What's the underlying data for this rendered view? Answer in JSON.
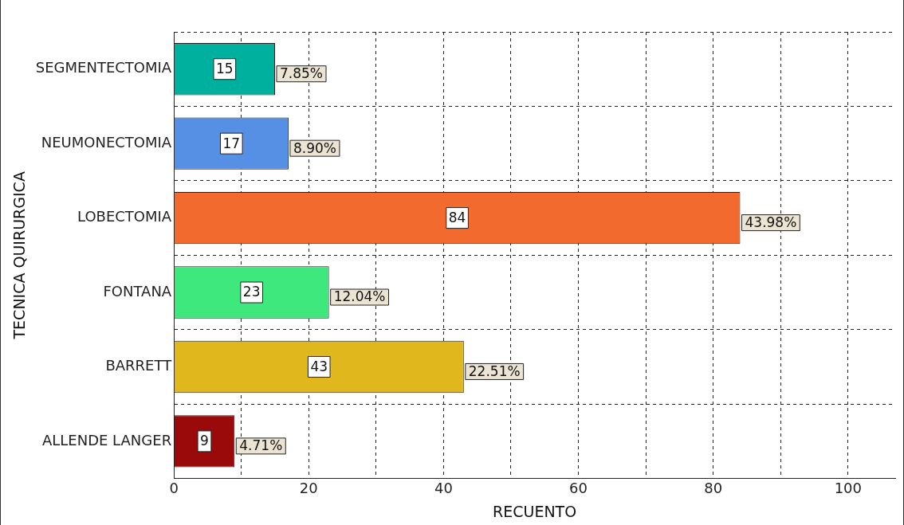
{
  "chart_data": {
    "type": "bar",
    "orientation": "horizontal",
    "xlabel": "RECUENTO",
    "ylabel": "TECNICA QUIRURGICA",
    "categories": [
      "SEGMENTECTOMIA",
      "NEUMONECTOMIA",
      "LOBECTOMIA",
      "FONTANA",
      "BARRETT",
      "ALLENDE LANGER"
    ],
    "values": [
      15,
      17,
      84,
      23,
      43,
      9
    ],
    "colors": [
      "#00b09e",
      "#5690e4",
      "#f26a2e",
      "#3ee87c",
      "#e0b81e",
      "#9b0a0a"
    ],
    "value_labels": [
      "15",
      "17",
      "84",
      "23",
      "43",
      "9"
    ],
    "annotations": [
      {
        "text": "7.85%",
        "x": 15,
        "y": "SEGMENTECTOMIA"
      },
      {
        "text": "8.90%",
        "x": 17,
        "y": "NEUMONECTOMIA"
      },
      {
        "text": "43.98%",
        "x": 84,
        "y": "LOBECTOMIA"
      },
      {
        "text": "12.04%",
        "x": 23,
        "y": "FONTANA"
      },
      {
        "text": "22.51%",
        "x": 43,
        "y": "BARRETT"
      },
      {
        "text": "4.71%",
        "x": 9,
        "y": "ALLENDE LANGER"
      }
    ],
    "xlim": [
      0,
      107
    ],
    "xticks": [
      0,
      {
        "value": 10,
        "label": null
      },
      20,
      {
        "value": 30,
        "label": null
      },
      40,
      {
        "value": 50,
        "label": null
      },
      60,
      {
        "value": 70,
        "label": null
      },
      80,
      {
        "value": 90,
        "label": null
      },
      100
    ],
    "grid": true,
    "legend": false
  }
}
